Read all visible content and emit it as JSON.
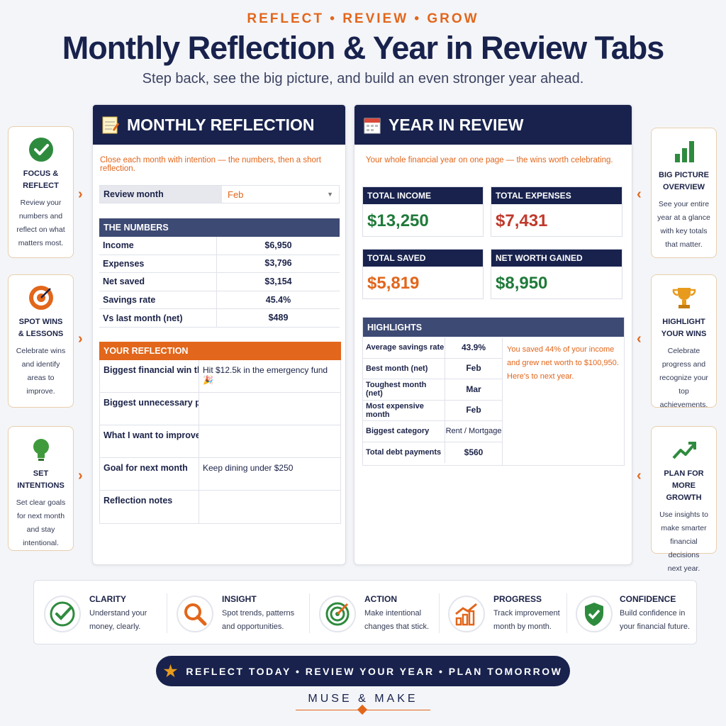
{
  "header": {
    "kicker": "REFLECT • REVIEW • GROW",
    "title": "Monthly Reflection & Year in Review Tabs",
    "subtitle": "Step back, see the big picture, and build an even stronger year ahead."
  },
  "left_cards": [
    {
      "icon": "check-circle-icon",
      "title_line1": "FOCUS &",
      "title_line2": "REFLECT",
      "text_lines": [
        "Review your",
        "numbers and",
        "reflect on what",
        "matters most."
      ]
    },
    {
      "icon": "target-icon",
      "title_line1": "SPOT WINS",
      "title_line2": "& LESSONS",
      "text_lines": [
        "Celebrate wins",
        "and identify",
        "areas to",
        "improve."
      ]
    },
    {
      "icon": "lightbulb-icon",
      "title_line1": "SET INTENTIONS",
      "title_line2": "",
      "text_lines": [
        "Set clear goals",
        "for next month",
        "and stay",
        "intentional."
      ]
    }
  ],
  "right_cards": [
    {
      "icon": "bar-chart-icon",
      "title_line1": "BIG PICTURE",
      "title_line2": "OVERVIEW",
      "text_lines": [
        "See your entire",
        "year at a glance",
        "with key totals",
        "that matter."
      ]
    },
    {
      "icon": "trophy-icon",
      "title_line1": "HIGHLIGHT",
      "title_line2": "YOUR WINS",
      "text_lines": [
        "Celebrate",
        "progress and",
        "recognize your",
        "top achievements."
      ]
    },
    {
      "icon": "trend-up-icon",
      "title_line1": "PLAN FOR",
      "title_line2": "MORE GROWTH",
      "text_lines": [
        "Use insights to",
        "make smarter",
        "financial decisions",
        "next year."
      ]
    }
  ],
  "monthly": {
    "title": "MONTHLY REFLECTION",
    "intro": "Close each month with intention — the numbers, then a short reflection.",
    "review_month_label": "Review month",
    "review_month_value": "Feb",
    "numbers_header": "THE NUMBERS",
    "numbers": [
      {
        "label": "Income",
        "value": "$6,950"
      },
      {
        "label": "Expenses",
        "value": "$3,796"
      },
      {
        "label": "Net saved",
        "value": "$3,154"
      },
      {
        "label": "Savings rate",
        "value": "45.4%"
      },
      {
        "label": "Vs last month (net)",
        "value": "$489"
      }
    ],
    "reflection_header": "YOUR REFLECTION",
    "reflection": [
      {
        "label": "Biggest financial win this",
        "value": "Hit $12.5k in the emergency fund 🎉"
      },
      {
        "label": "Biggest unnecessary purc",
        "value": ""
      },
      {
        "label": "What I want to improve",
        "value": ""
      },
      {
        "label": "Goal for next month",
        "value": "Keep dining under $250"
      },
      {
        "label": "Reflection notes",
        "value": ""
      }
    ]
  },
  "year": {
    "title": "YEAR IN REVIEW",
    "intro": "Your whole financial year on one page — the wins worth celebrating.",
    "kpis": [
      {
        "label": "TOTAL INCOME",
        "value": "$13,250",
        "color": "#1f7a3a"
      },
      {
        "label": "TOTAL EXPENSES",
        "value": "$7,431",
        "color": "#c0392b"
      },
      {
        "label": "TOTAL SAVED",
        "value": "$5,819",
        "color": "#e2661b"
      },
      {
        "label": "NET WORTH GAINED",
        "value": "$8,950",
        "color": "#1f7a3a"
      }
    ],
    "highlights_header": "HIGHLIGHTS",
    "highlights": [
      {
        "label": "Average savings rate",
        "value": "43.9%"
      },
      {
        "label": "Best month (net)",
        "value": "Feb"
      },
      {
        "label": "Toughest month (net)",
        "value": "Mar"
      },
      {
        "label": "Most expensive month",
        "value": "Feb"
      },
      {
        "label": "Biggest category",
        "value": "Rent / Mortgage"
      },
      {
        "label": "Total debt payments",
        "value": "$560"
      }
    ],
    "note": "You saved 44% of your income and grew net worth to $100,950. Here's to next year."
  },
  "bottom": [
    {
      "icon": "check-circle-icon",
      "title": "CLARITY",
      "line1": "Understand your",
      "line2": "money, clearly."
    },
    {
      "icon": "magnifier-icon",
      "title": "INSIGHT",
      "line1": "Spot trends, patterns",
      "line2": "and opportunities."
    },
    {
      "icon": "target-arrow-icon",
      "title": "ACTION",
      "line1": "Make intentional",
      "line2": "changes that stick."
    },
    {
      "icon": "growth-chart-icon",
      "title": "PROGRESS",
      "line1": "Track improvement",
      "line2": "month by month."
    },
    {
      "icon": "shield-check-icon",
      "title": "CONFIDENCE",
      "line1": "Build confidence in",
      "line2": "your financial future."
    }
  ],
  "banner": "REFLECT TODAY • REVIEW YOUR YEAR • PLAN TOMORROW",
  "brand": "MUSE & MAKE",
  "colors": {
    "navy": "#18224d",
    "accent": "#e2661b",
    "green": "#1f7a3a",
    "red": "#c0392b"
  }
}
